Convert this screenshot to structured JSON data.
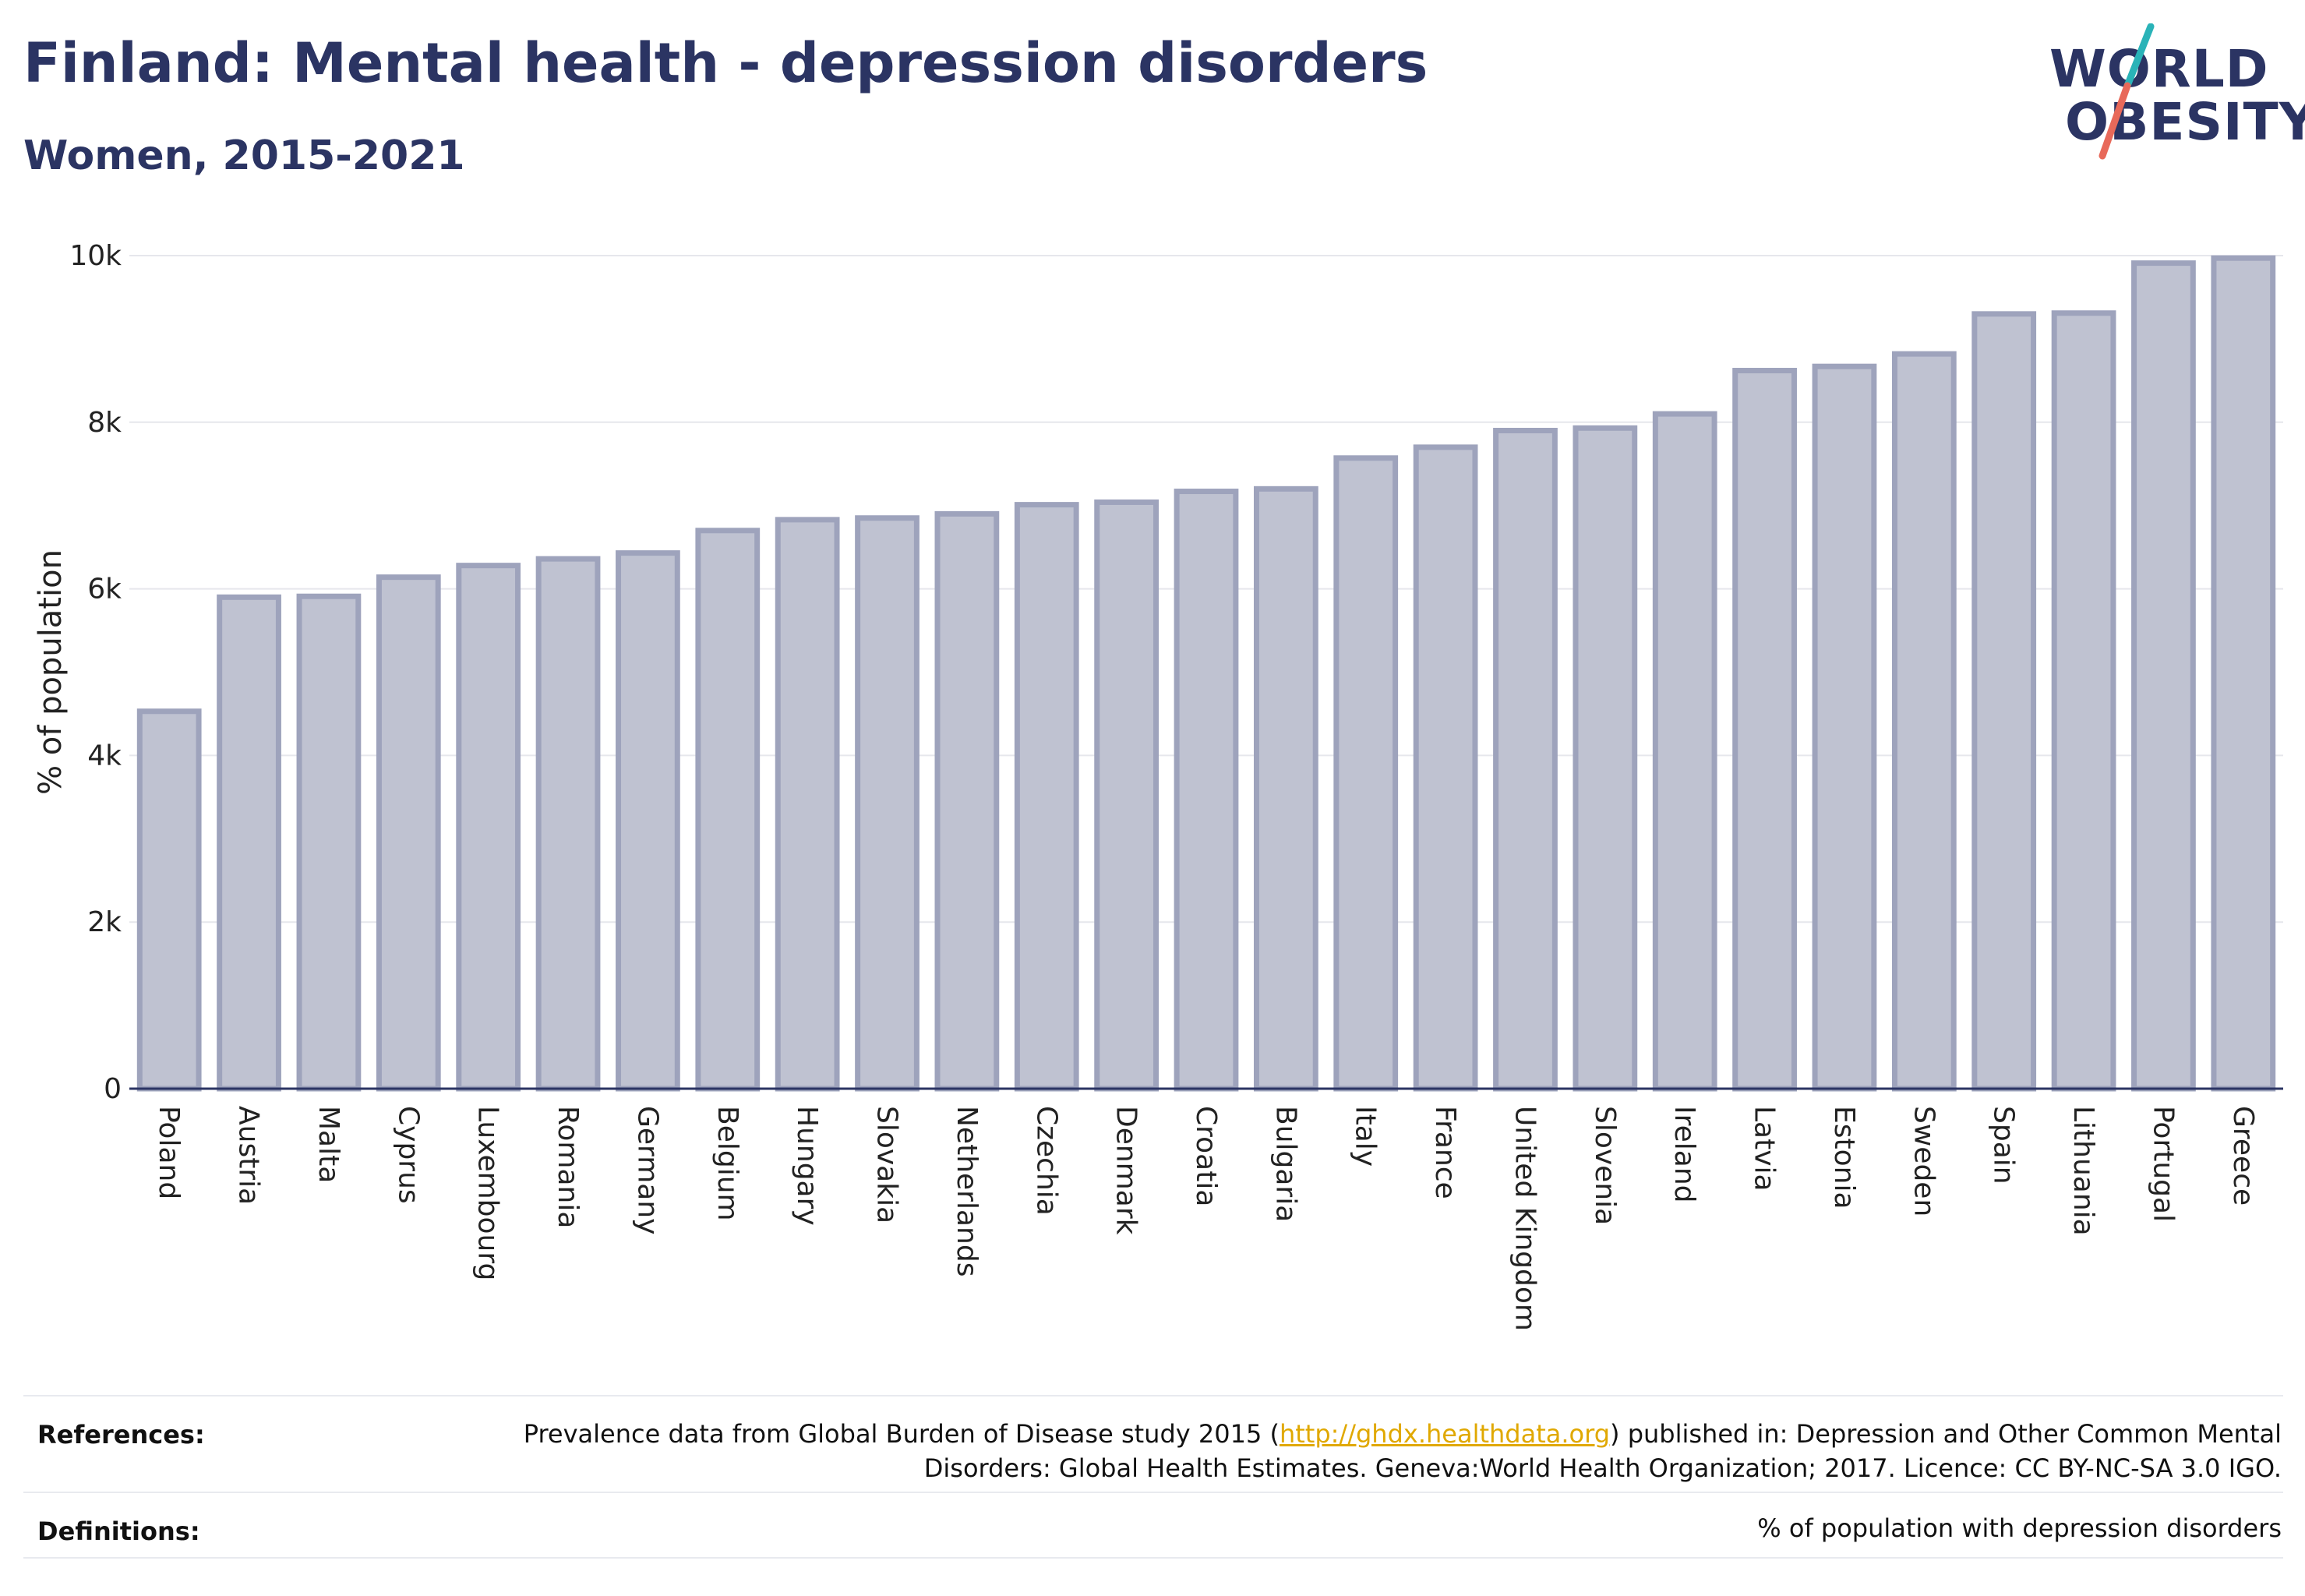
{
  "header": {
    "title": "Finland: Mental health - depression disorders",
    "subtitle": "Women, 2015-2021"
  },
  "logo": {
    "line1": "WORLD",
    "line2": "OBESITY",
    "accent_colors": [
      "#2ab3b8",
      "#e8695a"
    ]
  },
  "chart_data": {
    "type": "bar",
    "title": "",
    "xlabel": "",
    "ylabel": "% of population",
    "ylim": [
      0,
      10000
    ],
    "yticks": [
      0,
      2000,
      4000,
      6000,
      8000,
      10000
    ],
    "ytick_labels": [
      "0",
      "2k",
      "4k",
      "6k",
      "8k",
      "10k"
    ],
    "grid": true,
    "bar_fill": "#bfc2d1",
    "bar_stroke": "#9ea3bc",
    "categories": [
      "Poland",
      "Austria",
      "Malta",
      "Cyprus",
      "Luxembourg",
      "Romania",
      "Germany",
      "Belgium",
      "Hungary",
      "Slovakia",
      "Netherlands",
      "Czechia",
      "Denmark",
      "Croatia",
      "Bulgaria",
      "Italy",
      "France",
      "United Kingdom",
      "Slovenia",
      "Ireland",
      "Latvia",
      "Estonia",
      "Sweden",
      "Spain",
      "Lithuania",
      "Portugal",
      "Greece"
    ],
    "values": [
      4530,
      5900,
      5910,
      6140,
      6280,
      6360,
      6430,
      6700,
      6830,
      6850,
      6900,
      7010,
      7040,
      7170,
      7200,
      7570,
      7700,
      7900,
      7930,
      8100,
      8620,
      8670,
      8820,
      9300,
      9310,
      9910,
      9970
    ]
  },
  "footer": {
    "references_label": "References:",
    "references_text_before": "Prevalence data from Global Burden of Disease study 2015 (",
    "references_link": "http://ghdx.healthdata.org",
    "references_text_after": ") published in: Depression and Other Common Mental Disorders: Global Health Estimates. Geneva:World Health Organization; 2017. Licence: CC BY-NC-SA 3.0 IGO.",
    "definitions_label": "Definitions:",
    "definitions_text": "% of population with depression disorders"
  }
}
